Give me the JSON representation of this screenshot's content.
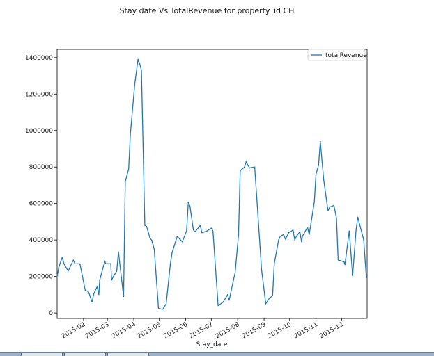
{
  "chart_data": {
    "type": "line",
    "title": "Stay date Vs TotalRevenue for property_id CH",
    "xlabel": "Stay_date",
    "ylabel": "",
    "xlim": [
      "2015-01-01",
      "2015-12-31"
    ],
    "ylim": [
      -30000,
      1445000
    ],
    "yticks": [
      0,
      200000,
      400000,
      600000,
      800000,
      1000000,
      1200000,
      1400000
    ],
    "ytick_labels": [
      "0",
      "200000",
      "400000",
      "600000",
      "800000",
      "1000000",
      "1200000",
      "1400000"
    ],
    "xtick_labels": [
      "2015-02",
      "2015-03",
      "2015-04",
      "2015-05",
      "2015-06",
      "2015-07",
      "2015-08",
      "2015-09",
      "2015-10",
      "2015-11",
      "2015-12"
    ],
    "xtick_dates": [
      "2015-02-01",
      "2015-03-01",
      "2015-04-01",
      "2015-05-01",
      "2015-06-01",
      "2015-07-01",
      "2015-08-01",
      "2015-09-01",
      "2015-10-01",
      "2015-11-01",
      "2015-12-01"
    ],
    "legend_position": "upper right",
    "grid": false,
    "series": [
      {
        "name": "totalRevenue",
        "color": "#1f77b4",
        "x": [
          "2015-01-01",
          "2015-01-03",
          "2015-01-07",
          "2015-01-09",
          "2015-01-14",
          "2015-01-20",
          "2015-01-22",
          "2015-01-27",
          "2015-01-28",
          "2015-02-03",
          "2015-02-05",
          "2015-02-07",
          "2015-02-11",
          "2015-02-13",
          "2015-02-17",
          "2015-02-19",
          "2015-02-20",
          "2015-02-26",
          "2015-02-27",
          "2015-03-05",
          "2015-03-06",
          "2015-03-08",
          "2015-03-12",
          "2015-03-14",
          "2015-03-20",
          "2015-03-22",
          "2015-03-26",
          "2015-03-28",
          "2015-04-02",
          "2015-04-06",
          "2015-04-08",
          "2015-04-10",
          "2015-04-14",
          "2015-04-16",
          "2015-04-20",
          "2015-04-22",
          "2015-04-25",
          "2015-04-30",
          "2015-05-05",
          "2015-05-09",
          "2015-05-14",
          "2015-05-16",
          "2015-05-22",
          "2015-05-28",
          "2015-06-02",
          "2015-06-04",
          "2015-06-06",
          "2015-06-10",
          "2015-06-12",
          "2015-06-18",
          "2015-06-20",
          "2015-06-26",
          "2015-07-01",
          "2015-07-03",
          "2015-07-09",
          "2015-07-15",
          "2015-07-20",
          "2015-07-22",
          "2015-07-27",
          "2015-07-29",
          "2015-08-02",
          "2015-08-04",
          "2015-08-09",
          "2015-08-11",
          "2015-08-13",
          "2015-08-15",
          "2015-08-21",
          "2015-08-27",
          "2015-08-29",
          "2015-09-03",
          "2015-09-07",
          "2015-09-11",
          "2015-09-13",
          "2015-09-18",
          "2015-09-20",
          "2015-09-24",
          "2015-09-26",
          "2015-09-30",
          "2015-10-02",
          "2015-10-05",
          "2015-10-07",
          "2015-10-09",
          "2015-10-13",
          "2015-10-15",
          "2015-10-16",
          "2015-10-22",
          "2015-10-24",
          "2015-10-30",
          "2015-11-01",
          "2015-11-04",
          "2015-11-06",
          "2015-11-08",
          "2015-11-10",
          "2015-11-15",
          "2015-11-17",
          "2015-11-22",
          "2015-11-25",
          "2015-11-27",
          "2015-12-01",
          "2015-12-04",
          "2015-12-05",
          "2015-12-10",
          "2015-12-14",
          "2015-12-18",
          "2015-12-20",
          "2015-12-27",
          "2015-12-30",
          "2015-12-31"
        ],
        "y": [
          200000,
          250000,
          305000,
          270000,
          230000,
          290000,
          270000,
          270000,
          265000,
          125000,
          120000,
          115000,
          60000,
          105000,
          145000,
          100000,
          180000,
          285000,
          270000,
          270000,
          180000,
          200000,
          230000,
          335000,
          90000,
          720000,
          790000,
          980000,
          1250000,
          1390000,
          1365000,
          1330000,
          480000,
          475000,
          410000,
          400000,
          350000,
          25000,
          20000,
          50000,
          270000,
          330000,
          420000,
          390000,
          450000,
          605000,
          585000,
          455000,
          445000,
          480000,
          440000,
          450000,
          465000,
          450000,
          40000,
          60000,
          100000,
          70000,
          180000,
          220000,
          430000,
          780000,
          800000,
          830000,
          810000,
          795000,
          800000,
          380000,
          240000,
          50000,
          80000,
          95000,
          270000,
          400000,
          420000,
          430000,
          405000,
          440000,
          445000,
          455000,
          400000,
          420000,
          445000,
          390000,
          420000,
          470000,
          430000,
          610000,
          760000,
          810000,
          940000,
          835000,
          730000,
          560000,
          580000,
          590000,
          520000,
          290000,
          285000,
          280000,
          265000,
          450000,
          205000,
          455000,
          525000,
          400000,
          200000,
          190000
        ]
      }
    ]
  }
}
